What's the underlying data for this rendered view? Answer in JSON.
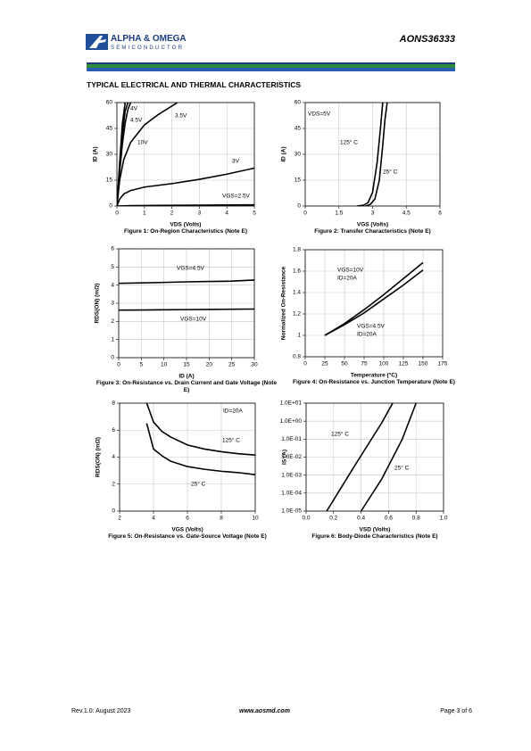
{
  "header": {
    "brand": "ALPHA & OMEGA",
    "brand_sub": "SEMICONDUCTOR",
    "part": "AONS36333"
  },
  "section_title": "TYPICAL ELECTRICAL AND THERMAL CHARACTERISTICS",
  "footer": {
    "rev": "Rev.1.0: August 2023",
    "site": "www.aosmd.com",
    "page": "Page 3 of 6"
  },
  "chart_data": [
    {
      "type": "line",
      "title": "Figure 1: On-Region Characteristics (Note E)",
      "xlabel": "VDS (Volts)",
      "ylabel": "ID (A)",
      "xlim": [
        0,
        5
      ],
      "ylim": [
        0,
        60
      ],
      "xticks": [
        0,
        1,
        2,
        3,
        4,
        5
      ],
      "yticks": [
        0,
        15,
        30,
        45,
        60
      ],
      "grid": true,
      "color": "#000000",
      "annotations": [
        "4V",
        "4.5V",
        "10V",
        "3.5V",
        "3V",
        "VGS=2.5V"
      ],
      "series": [
        {
          "x": [
            0,
            0.1,
            0.2,
            0.3
          ],
          "values": [
            0,
            25,
            48,
            60
          ]
        },
        {
          "x": [
            0,
            0.1,
            0.2,
            0.3,
            0.4
          ],
          "values": [
            0,
            22,
            42,
            55,
            60
          ]
        },
        {
          "x": [
            0,
            0.1,
            0.2,
            0.3,
            0.4,
            0.5
          ],
          "values": [
            0,
            20,
            36,
            48,
            56,
            60
          ]
        },
        {
          "x": [
            0,
            0.1,
            0.25,
            0.5,
            1,
            1.5,
            2,
            2.2
          ],
          "values": [
            0,
            15,
            27,
            37,
            47,
            53,
            58,
            60
          ]
        },
        {
          "x": [
            0,
            0.1,
            0.25,
            0.5,
            1,
            2,
            3,
            4,
            5
          ],
          "values": [
            0,
            4,
            7,
            9,
            11,
            13,
            15.5,
            18.5,
            22
          ]
        },
        {
          "x": [
            0,
            0.5,
            1,
            2,
            3,
            4,
            5
          ],
          "values": [
            0,
            0.2,
            0.3,
            0.4,
            0.5,
            0.6,
            0.7
          ]
        }
      ]
    },
    {
      "type": "line",
      "title": "Figure 2: Transfer Characteristics (Note E)",
      "xlabel": "VGS (Volts)",
      "ylabel": "ID (A)",
      "xlim": [
        0,
        6
      ],
      "ylim": [
        0,
        60
      ],
      "xticks": [
        0,
        1.5,
        3,
        4.5,
        6
      ],
      "yticks": [
        0,
        15,
        30,
        45,
        60
      ],
      "grid": true,
      "color": "#000000",
      "annotations": [
        "VDS=5V",
        "125° C",
        "25° C"
      ],
      "series": [
        {
          "x": [
            2.3,
            2.6,
            2.8,
            3,
            3.2,
            3.35,
            3.45
          ],
          "values": [
            0,
            0.5,
            2,
            8,
            25,
            45,
            60
          ]
        },
        {
          "x": [
            2.7,
            2.9,
            3.1,
            3.3,
            3.45,
            3.55,
            3.65
          ],
          "values": [
            0,
            1,
            4,
            15,
            35,
            50,
            60
          ]
        }
      ]
    },
    {
      "type": "line",
      "title": "Figure 3: On-Resistance vs. Drain Current and Gate Voltage (Note E)",
      "xlabel": "ID (A)",
      "ylabel": "RDS(ON) (mΩ)",
      "xlim": [
        0,
        30
      ],
      "ylim": [
        0,
        6
      ],
      "xticks": [
        0,
        5,
        10,
        15,
        20,
        25,
        30
      ],
      "yticks": [
        0,
        1,
        2,
        3,
        4,
        5,
        6
      ],
      "grid": true,
      "color": "#000000",
      "annotations": [
        "VGS=4.5V",
        "VGS=10V"
      ],
      "series": [
        {
          "x": [
            0,
            5,
            10,
            15,
            20,
            25,
            30
          ],
          "values": [
            4.1,
            4.12,
            4.15,
            4.18,
            4.2,
            4.22,
            4.28
          ]
        },
        {
          "x": [
            0,
            5,
            10,
            15,
            20,
            25,
            30
          ],
          "values": [
            2.62,
            2.63,
            2.64,
            2.65,
            2.66,
            2.67,
            2.68
          ]
        }
      ]
    },
    {
      "type": "line",
      "title": "Figure 4: On-Resistance vs. Junction Temperature (Note E)",
      "xlabel": "Temperature (°C)",
      "ylabel": "Normalized On-Resistance",
      "xlim": [
        0,
        175
      ],
      "ylim": [
        0.8,
        1.8
      ],
      "xticks": [
        0,
        25,
        50,
        75,
        100,
        125,
        150,
        175
      ],
      "yticks": [
        0.8,
        1,
        1.2,
        1.4,
        1.6,
        1.8
      ],
      "grid": true,
      "color": "#000000",
      "annotations": [
        "VGS=10V",
        "ID=20A",
        "VGS=4.5V",
        "ID=20A"
      ],
      "series": [
        {
          "x": [
            25,
            50,
            75,
            100,
            125,
            150
          ],
          "values": [
            1,
            1.11,
            1.24,
            1.38,
            1.53,
            1.68
          ]
        },
        {
          "x": [
            25,
            50,
            75,
            100,
            125,
            150
          ],
          "values": [
            1,
            1.1,
            1.21,
            1.34,
            1.47,
            1.61
          ]
        }
      ]
    },
    {
      "type": "line",
      "title": "Figure 5: On-Resistance vs. Gate-Source Voltage (Note E)",
      "xlabel": "VGS (Volts)",
      "ylabel": "RDS(ON) (mΩ)",
      "xlim": [
        2,
        10
      ],
      "ylim": [
        0,
        8
      ],
      "xticks": [
        2,
        4,
        6,
        8,
        10
      ],
      "yticks": [
        0,
        2,
        4,
        6,
        8
      ],
      "grid": true,
      "color": "#000000",
      "annotations": [
        "ID=20A",
        "125° C",
        "25° C"
      ],
      "series": [
        {
          "x": [
            3.6,
            4,
            4.5,
            5,
            6,
            7,
            8,
            9,
            10
          ],
          "values": [
            8,
            6.6,
            5.9,
            5.5,
            4.9,
            4.6,
            4.4,
            4.25,
            4.15
          ]
        },
        {
          "x": [
            3.6,
            4,
            4.5,
            5,
            6,
            7,
            8,
            9,
            10
          ],
          "values": [
            6.5,
            4.6,
            4.1,
            3.7,
            3.3,
            3.1,
            2.95,
            2.85,
            2.7
          ]
        }
      ]
    },
    {
      "type": "line",
      "title": "Figure 6: Body-Diode Characteristics (Note E)",
      "xlabel": "VSD (Volts)",
      "ylabel": "IS (A)",
      "xlim": [
        0,
        1
      ],
      "ylim": [
        1e-05,
        10
      ],
      "log_y": true,
      "xticks": [
        {
          "value": 0,
          "label": "0.0"
        },
        0.2,
        0.4,
        0.6,
        0.8,
        {
          "value": 1,
          "label": "1.0"
        }
      ],
      "yticks": [
        {
          "value": 1e-05,
          "label": "1.0E-05"
        },
        {
          "value": 0.0001,
          "label": "1.0E-04"
        },
        {
          "value": 0.001,
          "label": "1.0E-03"
        },
        {
          "value": 0.01,
          "label": "1.0E-02"
        },
        {
          "value": 0.1,
          "label": "1.0E-01"
        },
        {
          "value": 1,
          "label": "1.0E+00"
        },
        {
          "value": 10,
          "label": "1.0E+01"
        }
      ],
      "grid": true,
      "color": "#000000",
      "annotations": [
        "125° C",
        "25° C"
      ],
      "series": [
        {
          "x": [
            0.15,
            0.35,
            0.55,
            0.63
          ],
          "values": [
            1e-05,
            0.003,
            0.8,
            10
          ]
        },
        {
          "x": [
            0.4,
            0.55,
            0.7,
            0.8
          ],
          "values": [
            1e-05,
            0.0006,
            0.1,
            10
          ]
        }
      ]
    }
  ]
}
